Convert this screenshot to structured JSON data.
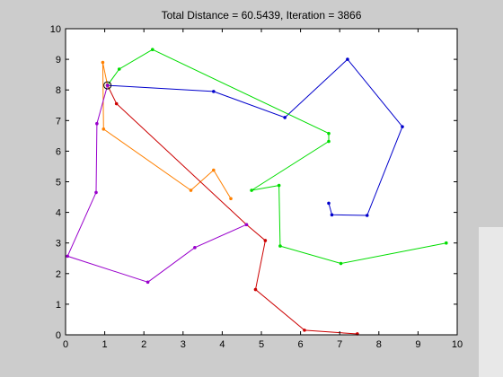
{
  "chart_data": {
    "type": "line",
    "title": "Total Distance = 60.5439, Iteration = 3866",
    "xlabel": "",
    "ylabel": "",
    "xlim": [
      0,
      10
    ],
    "ylim": [
      0,
      10
    ],
    "xticks": [
      0,
      1,
      2,
      3,
      4,
      5,
      6,
      7,
      8,
      9,
      10
    ],
    "yticks": [
      0,
      1,
      2,
      3,
      4,
      5,
      6,
      7,
      8,
      9,
      10
    ],
    "xtick_labels": [
      "0",
      "1",
      "2",
      "3",
      "4",
      "5",
      "6",
      "7",
      "8",
      "9",
      "10"
    ],
    "ytick_labels": [
      "0",
      "1",
      "2",
      "3",
      "4",
      "5",
      "6",
      "7",
      "8",
      "9",
      "10"
    ],
    "grid": false,
    "depot": {
      "x": 1.07,
      "y": 8.15
    },
    "series": [
      {
        "color": "#0000cc",
        "x": [
          1.07,
          3.78,
          5.6,
          7.2,
          8.6,
          7.7,
          6.8,
          6.72
        ],
        "y": [
          8.15,
          7.95,
          7.1,
          9.0,
          6.8,
          3.9,
          3.92,
          4.3
        ]
      },
      {
        "color": "#00dd00",
        "x": [
          1.07,
          1.37,
          2.22,
          6.72,
          6.72,
          4.75,
          5.45,
          5.48,
          7.03,
          9.72
        ],
        "y": [
          8.15,
          8.68,
          9.32,
          6.58,
          6.32,
          4.72,
          4.88,
          2.9,
          2.33,
          3.0
        ]
      },
      {
        "color": "#ff8000",
        "x": [
          1.07,
          0.95,
          0.97,
          3.2,
          3.78,
          4.22
        ],
        "y": [
          8.15,
          8.9,
          6.72,
          4.72,
          5.38,
          4.45
        ]
      },
      {
        "color": "#cc0000",
        "x": [
          1.07,
          1.3,
          4.62,
          5.1,
          4.85,
          6.1,
          7.45
        ],
        "y": [
          8.15,
          7.55,
          3.6,
          3.08,
          1.48,
          0.15,
          0.03
        ]
      },
      {
        "color": "#9900cc",
        "x": [
          1.07,
          0.8,
          0.78,
          0.05,
          2.1,
          3.3,
          4.62
        ],
        "y": [
          8.15,
          6.9,
          4.65,
          2.57,
          1.72,
          2.85,
          3.6
        ]
      }
    ]
  }
}
